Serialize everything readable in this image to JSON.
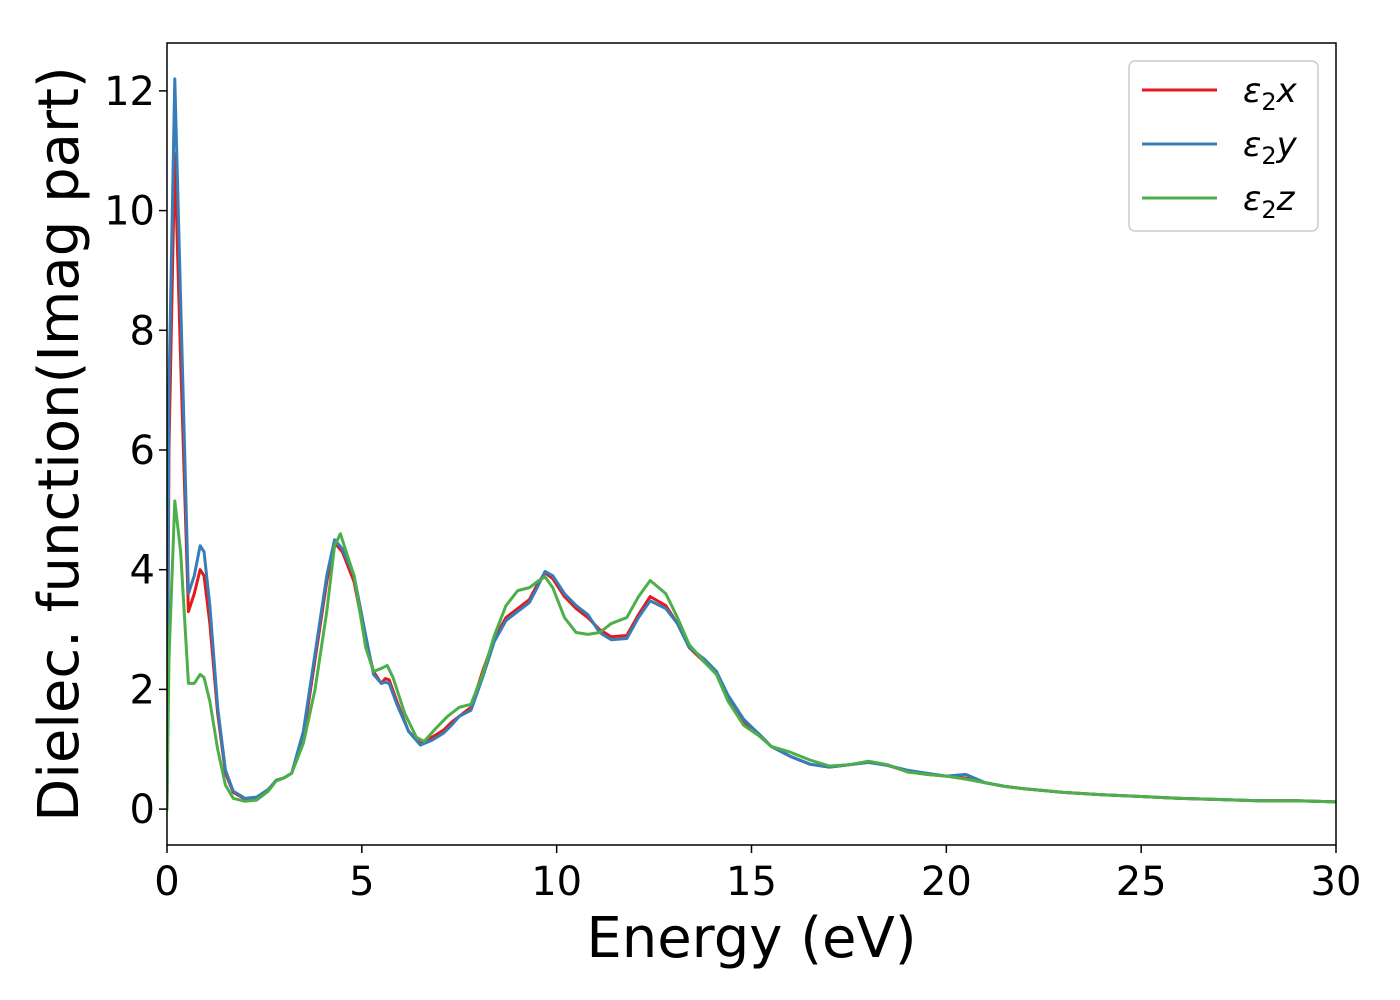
{
  "chart_data": {
    "type": "line",
    "xlabel": "Energy (eV)",
    "ylabel": "Dielec. function(Imag part)",
    "xlim": [
      0,
      30
    ],
    "ylim": [
      -0.6,
      12.8
    ],
    "xticks": [
      0,
      5,
      10,
      15,
      20,
      25,
      30
    ],
    "yticks": [
      0,
      2,
      4,
      6,
      8,
      10,
      12
    ],
    "grid": false,
    "legend_position": "top-right",
    "series": [
      {
        "name": "ε2x",
        "legend_base": "ε",
        "legend_sub": "2",
        "legend_var": "x",
        "color": "#e41a1c",
        "points": [
          [
            0,
            0
          ],
          [
            0.05,
            6.0
          ],
          [
            0.2,
            10.95
          ],
          [
            0.35,
            7.5
          ],
          [
            0.55,
            3.3
          ],
          [
            0.7,
            3.6
          ],
          [
            0.85,
            4.0
          ],
          [
            0.95,
            3.9
          ],
          [
            1.1,
            3.1
          ],
          [
            1.3,
            1.6
          ],
          [
            1.5,
            0.6
          ],
          [
            1.7,
            0.28
          ],
          [
            2.0,
            0.17
          ],
          [
            2.3,
            0.19
          ],
          [
            2.6,
            0.32
          ],
          [
            2.8,
            0.48
          ],
          [
            3.0,
            0.52
          ],
          [
            3.2,
            0.6
          ],
          [
            3.5,
            1.2
          ],
          [
            3.8,
            2.5
          ],
          [
            4.1,
            3.8
          ],
          [
            4.3,
            4.45
          ],
          [
            4.5,
            4.3
          ],
          [
            4.8,
            3.8
          ],
          [
            5.1,
            2.8
          ],
          [
            5.3,
            2.3
          ],
          [
            5.5,
            2.1
          ],
          [
            5.6,
            2.18
          ],
          [
            5.7,
            2.16
          ],
          [
            5.9,
            1.8
          ],
          [
            6.2,
            1.3
          ],
          [
            6.5,
            1.1
          ],
          [
            6.8,
            1.2
          ],
          [
            7.1,
            1.32
          ],
          [
            7.3,
            1.45
          ],
          [
            7.5,
            1.55
          ],
          [
            7.8,
            1.7
          ],
          [
            8.1,
            2.3
          ],
          [
            8.4,
            2.85
          ],
          [
            8.7,
            3.2
          ],
          [
            9.0,
            3.35
          ],
          [
            9.3,
            3.5
          ],
          [
            9.5,
            3.75
          ],
          [
            9.7,
            3.95
          ],
          [
            9.9,
            3.85
          ],
          [
            10.2,
            3.55
          ],
          [
            10.5,
            3.35
          ],
          [
            10.8,
            3.2
          ],
          [
            11.1,
            3.0
          ],
          [
            11.4,
            2.88
          ],
          [
            11.8,
            2.9
          ],
          [
            12.1,
            3.25
          ],
          [
            12.4,
            3.55
          ],
          [
            12.8,
            3.4
          ],
          [
            13.1,
            3.1
          ],
          [
            13.4,
            2.7
          ],
          [
            13.8,
            2.45
          ],
          [
            14.1,
            2.3
          ],
          [
            14.4,
            1.85
          ],
          [
            14.8,
            1.45
          ],
          [
            15.2,
            1.25
          ],
          [
            15.5,
            1.05
          ],
          [
            16.0,
            0.88
          ],
          [
            16.5,
            0.75
          ],
          [
            17.0,
            0.7
          ],
          [
            17.5,
            0.74
          ],
          [
            18.0,
            0.78
          ],
          [
            18.5,
            0.73
          ],
          [
            19.0,
            0.63
          ],
          [
            19.5,
            0.58
          ],
          [
            20.0,
            0.55
          ],
          [
            20.5,
            0.52
          ],
          [
            21.0,
            0.44
          ],
          [
            21.5,
            0.38
          ],
          [
            22.0,
            0.34
          ],
          [
            23.0,
            0.28
          ],
          [
            24.0,
            0.24
          ],
          [
            25.0,
            0.21
          ],
          [
            26.0,
            0.18
          ],
          [
            27.0,
            0.16
          ],
          [
            28.0,
            0.14
          ],
          [
            29.0,
            0.14
          ],
          [
            30.0,
            0.12
          ]
        ]
      },
      {
        "name": "ε2y",
        "legend_base": "ε",
        "legend_sub": "2",
        "legend_var": "y",
        "color": "#377eb8",
        "points": [
          [
            0,
            0
          ],
          [
            0.05,
            7.0
          ],
          [
            0.2,
            12.2
          ],
          [
            0.35,
            8.5
          ],
          [
            0.55,
            3.6
          ],
          [
            0.7,
            3.9
          ],
          [
            0.85,
            4.4
          ],
          [
            0.95,
            4.3
          ],
          [
            1.1,
            3.4
          ],
          [
            1.3,
            1.7
          ],
          [
            1.5,
            0.65
          ],
          [
            1.7,
            0.3
          ],
          [
            2.0,
            0.18
          ],
          [
            2.3,
            0.2
          ],
          [
            2.6,
            0.33
          ],
          [
            2.8,
            0.48
          ],
          [
            3.0,
            0.52
          ],
          [
            3.2,
            0.6
          ],
          [
            3.5,
            1.3
          ],
          [
            3.8,
            2.6
          ],
          [
            4.1,
            3.9
          ],
          [
            4.3,
            4.5
          ],
          [
            4.5,
            4.35
          ],
          [
            4.8,
            3.9
          ],
          [
            5.1,
            2.9
          ],
          [
            5.3,
            2.25
          ],
          [
            5.5,
            2.1
          ],
          [
            5.6,
            2.12
          ],
          [
            5.7,
            2.1
          ],
          [
            5.9,
            1.75
          ],
          [
            6.2,
            1.3
          ],
          [
            6.5,
            1.07
          ],
          [
            6.8,
            1.15
          ],
          [
            7.1,
            1.27
          ],
          [
            7.3,
            1.4
          ],
          [
            7.5,
            1.55
          ],
          [
            7.8,
            1.65
          ],
          [
            8.1,
            2.2
          ],
          [
            8.4,
            2.8
          ],
          [
            8.7,
            3.15
          ],
          [
            9.0,
            3.3
          ],
          [
            9.3,
            3.45
          ],
          [
            9.5,
            3.7
          ],
          [
            9.7,
            3.97
          ],
          [
            9.9,
            3.9
          ],
          [
            10.2,
            3.6
          ],
          [
            10.5,
            3.4
          ],
          [
            10.8,
            3.25
          ],
          [
            11.1,
            2.95
          ],
          [
            11.4,
            2.83
          ],
          [
            11.8,
            2.85
          ],
          [
            12.1,
            3.2
          ],
          [
            12.4,
            3.48
          ],
          [
            12.8,
            3.35
          ],
          [
            13.1,
            3.1
          ],
          [
            13.4,
            2.7
          ],
          [
            13.8,
            2.5
          ],
          [
            14.1,
            2.3
          ],
          [
            14.4,
            1.9
          ],
          [
            14.8,
            1.5
          ],
          [
            15.2,
            1.25
          ],
          [
            15.5,
            1.05
          ],
          [
            16.0,
            0.88
          ],
          [
            16.5,
            0.75
          ],
          [
            17.0,
            0.7
          ],
          [
            17.5,
            0.74
          ],
          [
            18.0,
            0.78
          ],
          [
            18.5,
            0.73
          ],
          [
            19.0,
            0.65
          ],
          [
            19.5,
            0.6
          ],
          [
            20.0,
            0.55
          ],
          [
            20.5,
            0.58
          ],
          [
            21.0,
            0.44
          ],
          [
            21.5,
            0.38
          ],
          [
            22.0,
            0.34
          ],
          [
            23.0,
            0.28
          ],
          [
            24.0,
            0.24
          ],
          [
            25.0,
            0.21
          ],
          [
            26.0,
            0.18
          ],
          [
            27.0,
            0.16
          ],
          [
            28.0,
            0.14
          ],
          [
            29.0,
            0.14
          ],
          [
            30.0,
            0.12
          ]
        ]
      },
      {
        "name": "ε2z",
        "legend_base": "ε",
        "legend_sub": "2",
        "legend_var": "z",
        "color": "#4daf4a",
        "points": [
          [
            0,
            0
          ],
          [
            0.05,
            2.5
          ],
          [
            0.2,
            5.15
          ],
          [
            0.35,
            4.3
          ],
          [
            0.55,
            2.1
          ],
          [
            0.7,
            2.1
          ],
          [
            0.85,
            2.25
          ],
          [
            0.95,
            2.2
          ],
          [
            1.1,
            1.8
          ],
          [
            1.3,
            1.0
          ],
          [
            1.5,
            0.4
          ],
          [
            1.7,
            0.18
          ],
          [
            2.0,
            0.13
          ],
          [
            2.3,
            0.15
          ],
          [
            2.6,
            0.3
          ],
          [
            2.8,
            0.47
          ],
          [
            3.0,
            0.52
          ],
          [
            3.2,
            0.6
          ],
          [
            3.5,
            1.1
          ],
          [
            3.8,
            2.0
          ],
          [
            4.1,
            3.3
          ],
          [
            4.3,
            4.4
          ],
          [
            4.45,
            4.6
          ],
          [
            4.8,
            3.9
          ],
          [
            5.1,
            2.7
          ],
          [
            5.3,
            2.3
          ],
          [
            5.5,
            2.35
          ],
          [
            5.65,
            2.4
          ],
          [
            5.8,
            2.2
          ],
          [
            6.1,
            1.6
          ],
          [
            6.4,
            1.2
          ],
          [
            6.6,
            1.13
          ],
          [
            6.9,
            1.35
          ],
          [
            7.2,
            1.55
          ],
          [
            7.5,
            1.7
          ],
          [
            7.8,
            1.75
          ],
          [
            8.1,
            2.25
          ],
          [
            8.4,
            2.9
          ],
          [
            8.7,
            3.4
          ],
          [
            9.0,
            3.65
          ],
          [
            9.3,
            3.7
          ],
          [
            9.5,
            3.8
          ],
          [
            9.7,
            3.88
          ],
          [
            9.9,
            3.7
          ],
          [
            10.2,
            3.2
          ],
          [
            10.5,
            2.95
          ],
          [
            10.8,
            2.92
          ],
          [
            11.1,
            2.95
          ],
          [
            11.4,
            3.1
          ],
          [
            11.8,
            3.2
          ],
          [
            12.1,
            3.55
          ],
          [
            12.4,
            3.82
          ],
          [
            12.8,
            3.6
          ],
          [
            13.1,
            3.2
          ],
          [
            13.4,
            2.75
          ],
          [
            13.8,
            2.45
          ],
          [
            14.1,
            2.25
          ],
          [
            14.4,
            1.8
          ],
          [
            14.8,
            1.4
          ],
          [
            15.2,
            1.22
          ],
          [
            15.5,
            1.05
          ],
          [
            16.0,
            0.95
          ],
          [
            16.5,
            0.82
          ],
          [
            17.0,
            0.72
          ],
          [
            17.5,
            0.74
          ],
          [
            18.0,
            0.8
          ],
          [
            18.5,
            0.74
          ],
          [
            19.0,
            0.62
          ],
          [
            19.5,
            0.58
          ],
          [
            20.0,
            0.55
          ],
          [
            20.5,
            0.5
          ],
          [
            21.0,
            0.44
          ],
          [
            21.5,
            0.38
          ],
          [
            22.0,
            0.34
          ],
          [
            23.0,
            0.28
          ],
          [
            24.0,
            0.24
          ],
          [
            25.0,
            0.21
          ],
          [
            26.0,
            0.18
          ],
          [
            27.0,
            0.16
          ],
          [
            28.0,
            0.14
          ],
          [
            29.0,
            0.14
          ],
          [
            30.0,
            0.12
          ]
        ]
      }
    ]
  }
}
